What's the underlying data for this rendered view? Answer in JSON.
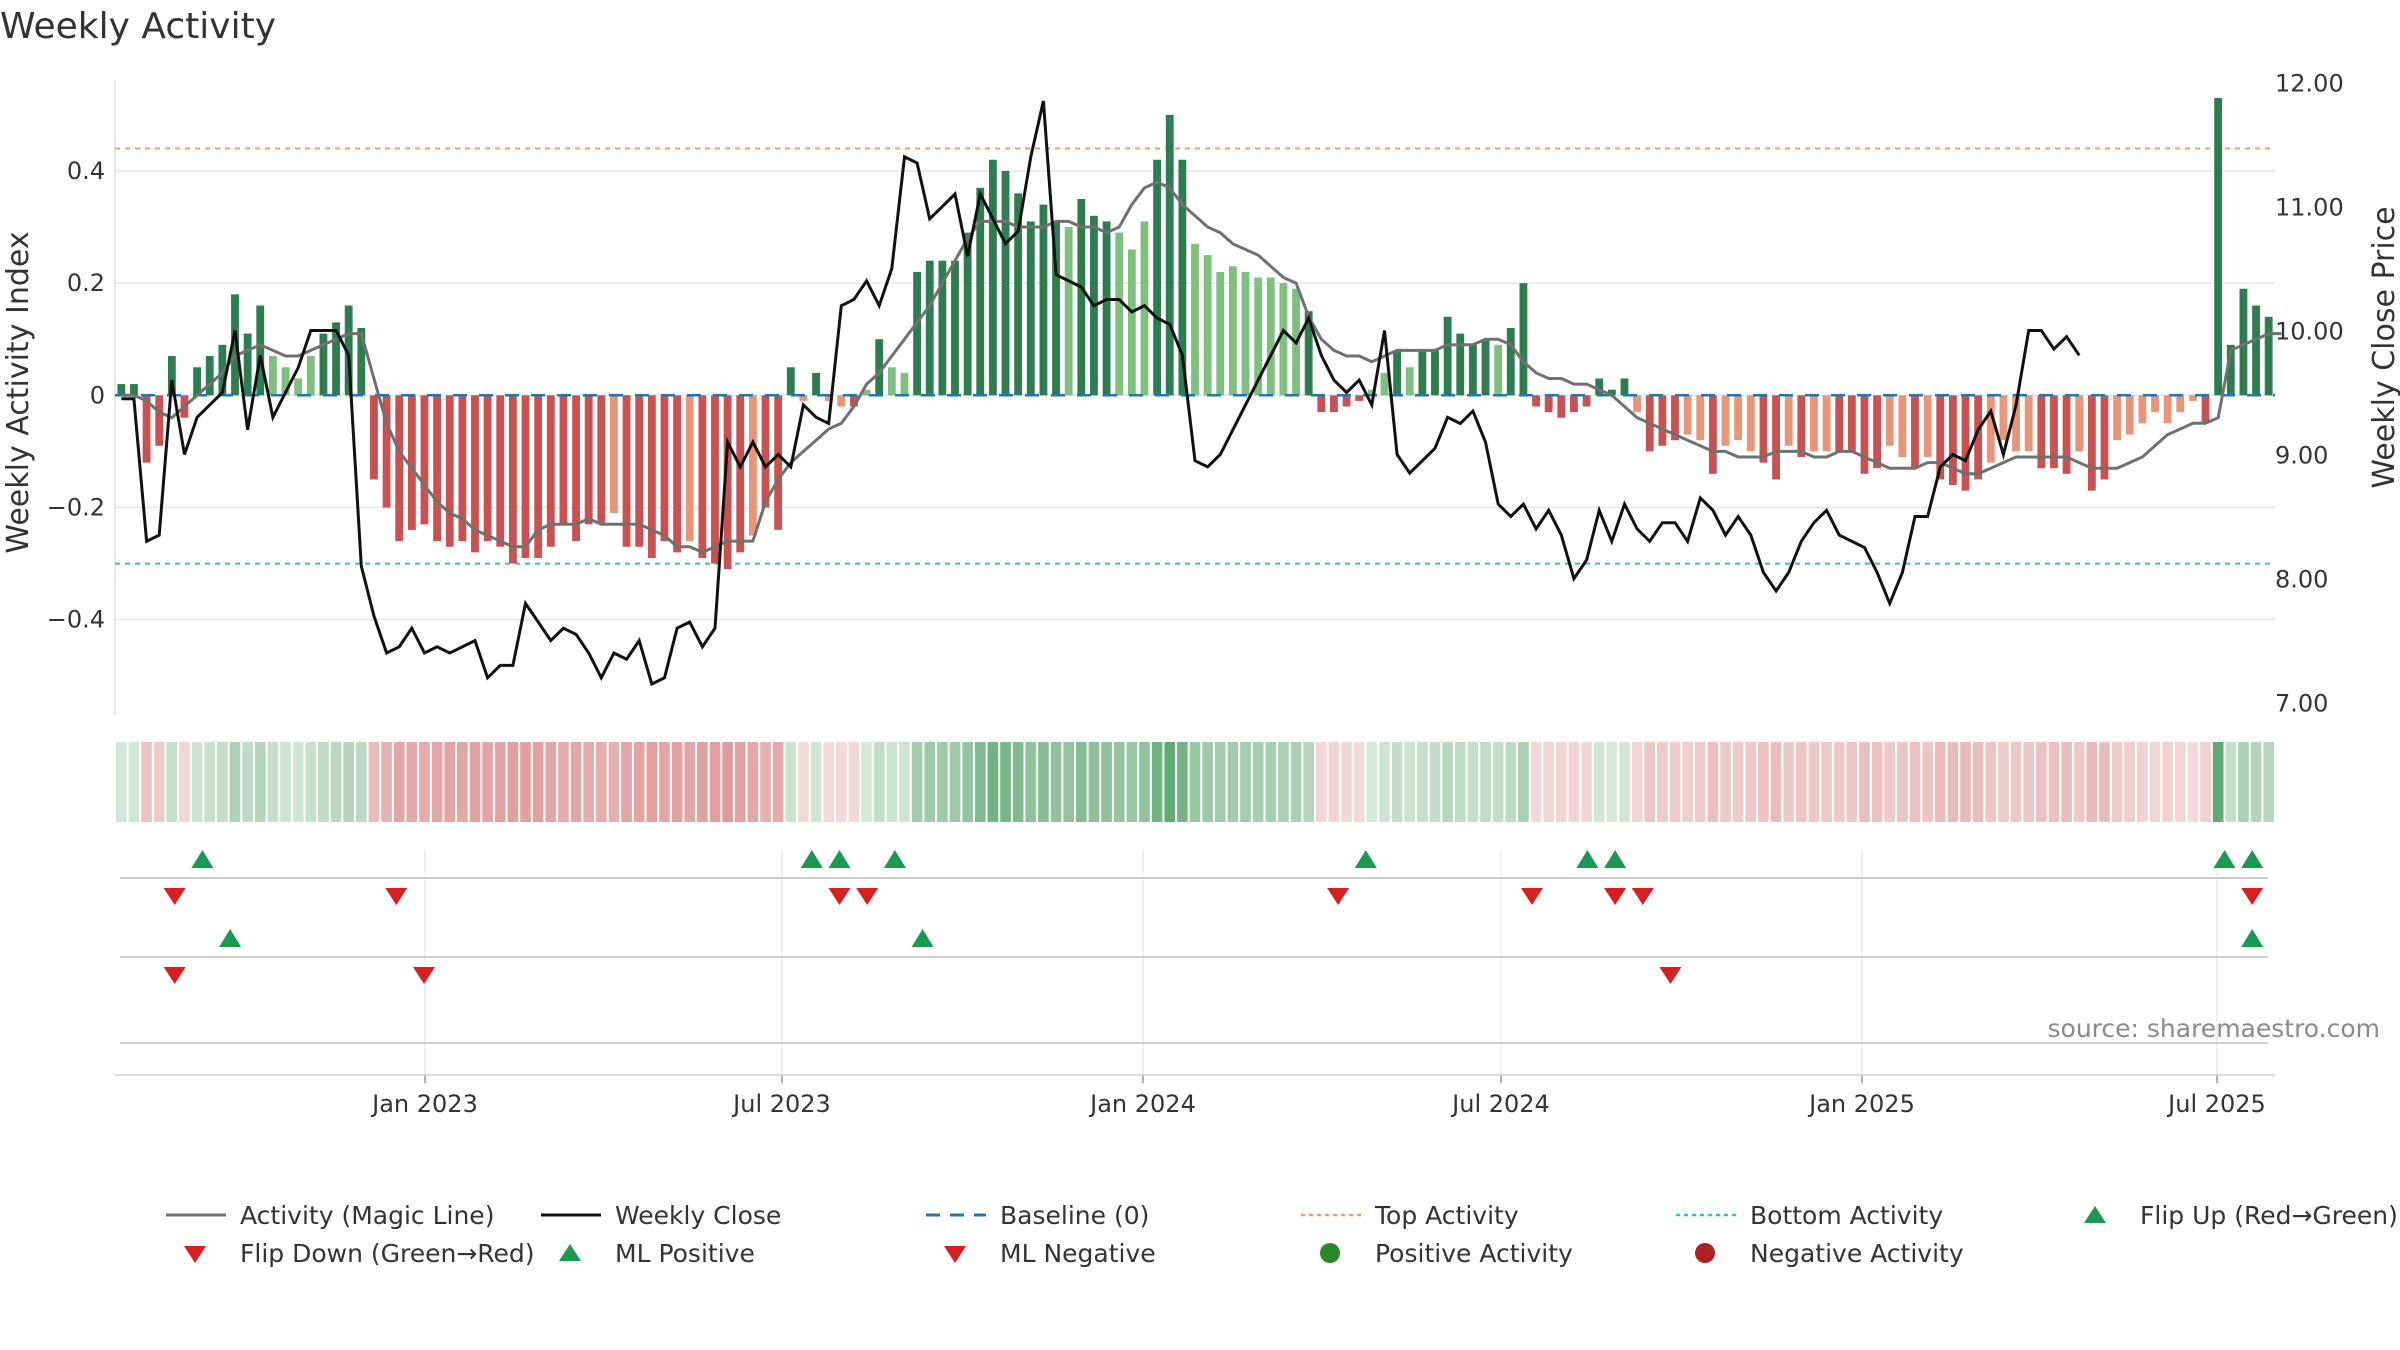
{
  "title": "Weekly Activity",
  "source": "source: sharemaestro.com",
  "chart_data": {
    "type": "bar+line",
    "title": "Weekly Activity",
    "ylabel_left": "Weekly Activity Index",
    "ylabel_right": "Weekly Close Price",
    "yticks_left": [
      {
        "v": 0.4,
        "label": "0.4"
      },
      {
        "v": 0.2,
        "label": "0.2"
      },
      {
        "v": 0,
        "label": "0"
      },
      {
        "v": -0.2,
        "label": "−0.2"
      },
      {
        "v": -0.4,
        "label": "−0.4"
      }
    ],
    "yticks_right": [
      {
        "v": 12,
        "label": "12.00"
      },
      {
        "v": 11,
        "label": "11.00"
      },
      {
        "v": 10,
        "label": "10.00"
      },
      {
        "v": 9,
        "label": "9.00"
      },
      {
        "v": 8,
        "label": "8.00"
      },
      {
        "v": 7,
        "label": "7.00"
      }
    ],
    "ylim_left": [
      -0.57,
      0.58
    ],
    "ylim_right": [
      6.9,
      12.1
    ],
    "x_start_week": 0,
    "xtick_labels": [
      {
        "week": 9,
        "label": "Jan 2023"
      },
      {
        "week": 35,
        "label": "Jul 2023"
      },
      {
        "week": 61,
        "label": "Jan 2024"
      },
      {
        "week": 87,
        "label": "Jul 2024"
      },
      {
        "week": 113,
        "label": "Jan 2025"
      },
      {
        "week": 139,
        "label": "Jul 2025"
      }
    ],
    "top_activity": 0.44,
    "bottom_activity": -0.3,
    "baseline": 0,
    "activity": [
      0.02,
      0.02,
      -0.12,
      -0.09,
      0.07,
      -0.04,
      0.05,
      0.07,
      0.09,
      0.18,
      0.11,
      0.16,
      0.07,
      0.05,
      0.03,
      0.07,
      0.11,
      0.13,
      0.16,
      0.12,
      -0.15,
      -0.2,
      -0.26,
      -0.24,
      -0.23,
      -0.26,
      -0.27,
      -0.26,
      -0.28,
      -0.26,
      -0.27,
      -0.3,
      -0.29,
      -0.29,
      -0.27,
      -0.23,
      -0.26,
      -0.23,
      -0.23,
      -0.21,
      -0.27,
      -0.27,
      -0.29,
      -0.26,
      -0.28,
      -0.26,
      -0.29,
      -0.3,
      -0.31,
      -0.28,
      -0.25,
      -0.2,
      -0.24,
      0.05,
      -0.01,
      0.04,
      -0.01,
      -0.02,
      -0.02,
      0.01,
      0.1,
      0.05,
      0.04,
      0.22,
      0.24,
      0.24,
      0.24,
      0.29,
      0.37,
      0.42,
      0.4,
      0.36,
      0.31,
      0.34,
      0.31,
      0.3,
      0.35,
      0.32,
      0.31,
      0.29,
      0.26,
      0.31,
      0.42,
      0.5,
      0.42,
      0.27,
      0.25,
      0.22,
      0.23,
      0.22,
      0.21,
      0.21,
      0.2,
      0.19,
      0.15,
      -0.03,
      -0.03,
      -0.02,
      -0.01,
      0.01,
      0.04,
      0.08,
      0.05,
      0.08,
      0.08,
      0.14,
      0.11,
      0.09,
      0.1,
      0.09,
      0.12,
      0.2,
      -0.02,
      -0.03,
      -0.04,
      -0.03,
      -0.02,
      0.03,
      0.01,
      0.03,
      -0.03,
      -0.1,
      -0.09,
      -0.08,
      -0.07,
      -0.08,
      -0.14,
      -0.09,
      -0.08,
      -0.1,
      -0.12,
      -0.15,
      -0.09,
      -0.11,
      -0.1,
      -0.1,
      -0.1,
      -0.1,
      -0.14,
      -0.13,
      -0.09,
      -0.11,
      -0.13,
      -0.11,
      -0.15,
      -0.16,
      -0.17,
      -0.15,
      -0.12,
      -0.08,
      -0.1,
      -0.1,
      -0.13,
      -0.13,
      -0.14,
      -0.1,
      -0.17,
      -0.15,
      -0.08,
      -0.07,
      -0.05,
      -0.03,
      -0.05,
      -0.03,
      -0.01,
      -0.05,
      0.53,
      0.09,
      0.19,
      0.16,
      0.14
    ],
    "weekly_close": [
      9.45,
      9.45,
      8.3,
      8.35,
      9.6,
      9.0,
      9.3,
      9.4,
      9.5,
      10.0,
      9.2,
      9.8,
      9.3,
      9.5,
      9.7,
      10.0,
      10.0,
      10.0,
      9.8,
      8.1,
      7.7,
      7.4,
      7.45,
      7.6,
      7.4,
      7.45,
      7.4,
      7.45,
      7.5,
      7.2,
      7.3,
      7.3,
      7.8,
      7.65,
      7.5,
      7.6,
      7.55,
      7.4,
      7.2,
      7.4,
      7.35,
      7.5,
      7.15,
      7.2,
      7.6,
      7.65,
      7.45,
      7.6,
      9.1,
      8.9,
      9.1,
      8.9,
      9.0,
      8.9,
      9.4,
      9.3,
      9.25,
      10.2,
      10.25,
      10.4,
      10.2,
      10.5,
      11.4,
      11.35,
      10.9,
      11.0,
      11.1,
      10.6,
      11.1,
      10.9,
      10.7,
      10.8,
      11.4,
      11.85,
      10.45,
      10.4,
      10.35,
      10.2,
      10.25,
      10.25,
      10.15,
      10.2,
      10.1,
      10.05,
      9.8,
      8.95,
      8.9,
      9.0,
      9.2,
      9.4,
      9.6,
      9.8,
      10.0,
      9.9,
      10.1,
      9.8,
      9.6,
      9.5,
      9.6,
      9.4,
      10.0,
      9.0,
      8.85,
      8.95,
      9.05,
      9.3,
      9.25,
      9.35,
      9.1,
      8.6,
      8.5,
      8.6,
      8.4,
      8.55,
      8.35,
      8.0,
      8.15,
      8.55,
      8.3,
      8.6,
      8.4,
      8.3,
      8.45,
      8.45,
      8.3,
      8.65,
      8.55,
      8.35,
      8.5,
      8.35,
      8.05,
      7.9,
      8.05,
      8.3,
      8.45,
      8.55,
      8.35,
      8.3,
      8.25,
      8.05,
      7.8,
      8.05,
      8.5,
      8.5,
      8.9,
      9.0,
      8.95,
      9.2,
      9.35,
      9.0,
      9.4,
      10.0,
      10.0,
      9.85,
      9.95,
      9.8
    ],
    "magic_line": [
      0.0,
      0.0,
      -0.01,
      -0.03,
      -0.04,
      -0.02,
      0.0,
      0.02,
      0.04,
      0.07,
      0.08,
      0.09,
      0.08,
      0.07,
      0.07,
      0.08,
      0.09,
      0.1,
      0.11,
      0.11,
      0.03,
      -0.05,
      -0.1,
      -0.13,
      -0.16,
      -0.19,
      -0.21,
      -0.22,
      -0.24,
      -0.25,
      -0.26,
      -0.27,
      -0.27,
      -0.24,
      -0.23,
      -0.23,
      -0.23,
      -0.22,
      -0.23,
      -0.23,
      -0.23,
      -0.23,
      -0.24,
      -0.25,
      -0.27,
      -0.27,
      -0.28,
      -0.27,
      -0.26,
      -0.26,
      -0.26,
      -0.19,
      -0.15,
      -0.12,
      -0.1,
      -0.08,
      -0.06,
      -0.05,
      -0.02,
      0.02,
      0.04,
      0.07,
      0.1,
      0.13,
      0.16,
      0.2,
      0.24,
      0.28,
      0.31,
      0.31,
      0.31,
      0.3,
      0.3,
      0.3,
      0.31,
      0.31,
      0.3,
      0.3,
      0.29,
      0.3,
      0.34,
      0.37,
      0.38,
      0.37,
      0.34,
      0.32,
      0.3,
      0.29,
      0.27,
      0.26,
      0.25,
      0.23,
      0.21,
      0.2,
      0.14,
      0.1,
      0.08,
      0.07,
      0.07,
      0.06,
      0.07,
      0.08,
      0.08,
      0.08,
      0.08,
      0.09,
      0.09,
      0.09,
      0.1,
      0.1,
      0.09,
      0.06,
      0.04,
      0.03,
      0.03,
      0.02,
      0.02,
      0.01,
      -0.0,
      -0.02,
      -0.04,
      -0.05,
      -0.06,
      -0.07,
      -0.08,
      -0.09,
      -0.1,
      -0.1,
      -0.11,
      -0.11,
      -0.11,
      -0.1,
      -0.1,
      -0.1,
      -0.11,
      -0.11,
      -0.1,
      -0.1,
      -0.11,
      -0.12,
      -0.13,
      -0.13,
      -0.13,
      -0.12,
      -0.12,
      -0.13,
      -0.14,
      -0.14,
      -0.13,
      -0.12,
      -0.11,
      -0.11,
      -0.11,
      -0.11,
      -0.11,
      -0.12,
      -0.13,
      -0.13,
      -0.13,
      -0.12,
      -0.11,
      -0.09,
      -0.07,
      -0.06,
      -0.05,
      -0.05,
      -0.04,
      0.08,
      0.09,
      0.1,
      0.11,
      0.11
    ],
    "heat_colors": {
      "pos_dark": "#2e7d4f",
      "pos_light": "#7fbf7f",
      "neg_dark": "#c95151",
      "neg_light": "#e8957a"
    },
    "marker_rows": [
      {
        "up": [
          2,
          24,
          25,
          27,
          44,
          52,
          53,
          75,
          76
        ],
        "down": [
          1,
          9,
          25,
          26,
          43,
          50,
          53,
          54,
          76
        ]
      },
      {
        "up": [
          3,
          28,
          76
        ],
        "down": [
          1,
          10,
          55
        ]
      },
      {
        "up": [],
        "down": []
      }
    ],
    "legend": [
      {
        "label": "Activity (Magic Line)",
        "symbol": "line-gray"
      },
      {
        "label": "Weekly Close",
        "symbol": "line-black"
      },
      {
        "label": "Baseline (0)",
        "symbol": "dash-blue"
      },
      {
        "label": "Top Activity",
        "symbol": "dot-orange"
      },
      {
        "label": "Bottom Activity",
        "symbol": "dot-cyan"
      },
      {
        "label": "Flip Up (Red→Green)",
        "symbol": "tri-up-green"
      },
      {
        "label": "Flip Down (Green→Red)",
        "symbol": "tri-down-red"
      },
      {
        "label": "ML Positive",
        "symbol": "tri-up-green"
      },
      {
        "label": "ML Negative",
        "symbol": "tri-down-red"
      },
      {
        "label": "Positive Activity",
        "symbol": "circle-green"
      },
      {
        "label": "Negative Activity",
        "symbol": "circle-red"
      }
    ],
    "colors": {
      "magic_line": "#707070",
      "close": "#111111",
      "baseline": "#1f77b4",
      "top": "#f0a060",
      "bottom": "#30c0d0",
      "up": "#1a9a50",
      "down": "#d62020",
      "pos_dot": "#2a8a2a",
      "neg_dot": "#b02020"
    }
  }
}
